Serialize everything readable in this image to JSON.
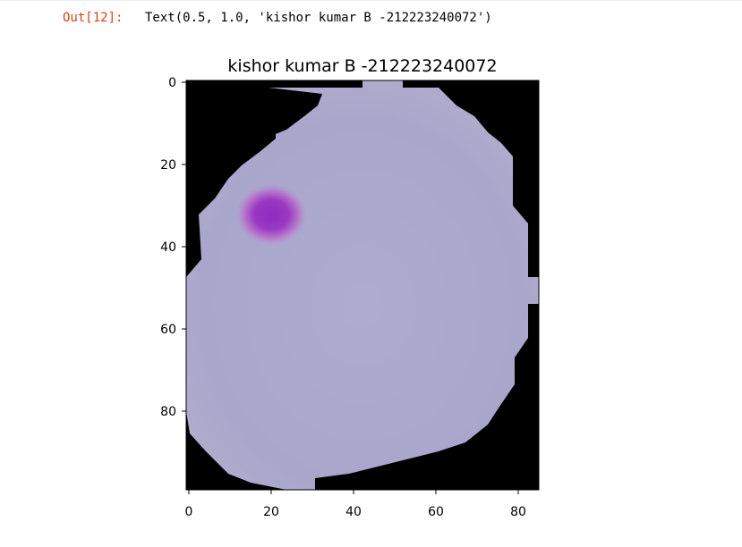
{
  "cell": {
    "prompt": "Out[12]:",
    "output_text": "Text(0.5, 1.0, 'kishor kumar B -212223240072')"
  },
  "figure": {
    "title": "kishor kumar B -212223240072",
    "image_kind": "rgb-image",
    "background_color": "#000000",
    "cell_color": "#a9a6cb",
    "stain_color": "#9a37c2",
    "x_ticks": [
      "0",
      "20",
      "40",
      "60",
      "80"
    ],
    "y_ticks": [
      "0",
      "20",
      "40",
      "60",
      "80"
    ]
  },
  "chart_data": {
    "type": "heatmap",
    "title": "kishor kumar B -212223240072",
    "xlabel": "",
    "ylabel": "",
    "xlim": [
      0,
      85
    ],
    "ylim": [
      100,
      0
    ],
    "x_ticks": [
      0,
      20,
      40,
      60,
      80
    ],
    "y_ticks": [
      0,
      20,
      40,
      60,
      80
    ],
    "image_width": 86,
    "image_height": 100,
    "grid": false,
    "legend": "none"
  }
}
